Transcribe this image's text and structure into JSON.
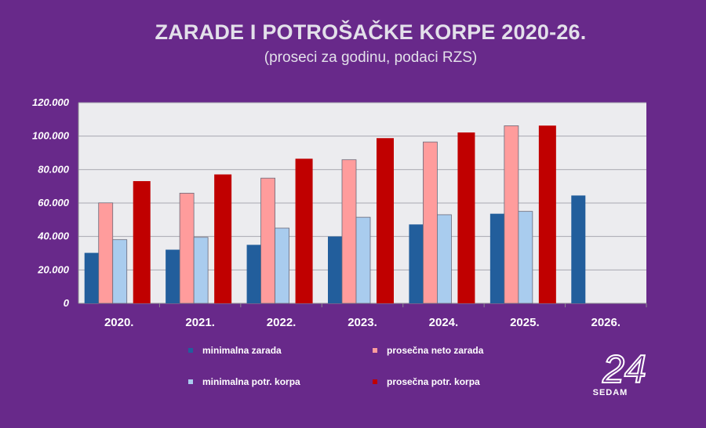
{
  "title": "ZARADE I POTROŠAČKE KORPE 2020-26.",
  "subtitle": "(proseci za godinu, podaci RZS)",
  "colors": {
    "background": "#68298a",
    "plot_area": "#ececef",
    "minimalna_zarada": "#225e9c",
    "prosecna_neto_zarada": "#ff9c9c",
    "minimalna_potr_korpa": "#a9ccee",
    "prosecna_potr_korpa": "#c00000"
  },
  "legend": {
    "minimalna_zarada": "minimalna zarada",
    "prosecna_neto_zarada": "prosečna neto zarada",
    "minimalna_potr_korpa": "minimalna potr. korpa",
    "prosecna_potr_korpa": "prosečna potr. korpa"
  },
  "logo": {
    "number": "24",
    "text": "SEDAM"
  },
  "chart_data": {
    "type": "bar",
    "title": "ZARADE I POTROŠAČKE KORPE 2020-26.",
    "subtitle": "(proseci za godinu, podaci RZS)",
    "categories": [
      "2020.",
      "2021.",
      "2022.",
      "2023.",
      "2024.",
      "2025.",
      "2026."
    ],
    "yticks": [
      "0",
      "20.000",
      "40.000",
      "60.000",
      "80.000",
      "100.000",
      "120.000"
    ],
    "ylim": [
      0,
      120000
    ],
    "grid": true,
    "legend_position": "bottom",
    "series": [
      {
        "name": "minimalna zarada",
        "color": "#225e9c",
        "values": [
          30200,
          32100,
          35000,
          40000,
          47200,
          53600,
          64500
        ]
      },
      {
        "name": "prosečna neto zarada",
        "color": "#ff9c9c",
        "values": [
          60100,
          65900,
          74900,
          85900,
          96500,
          106200,
          null
        ]
      },
      {
        "name": "minimalna potr. korpa",
        "color": "#a9ccee",
        "values": [
          38100,
          39500,
          45000,
          51500,
          53000,
          55000,
          null
        ]
      },
      {
        "name": "prosečna potr. korpa",
        "color": "#c00000",
        "values": [
          73100,
          77100,
          86500,
          98800,
          102200,
          106300,
          null
        ]
      }
    ]
  }
}
